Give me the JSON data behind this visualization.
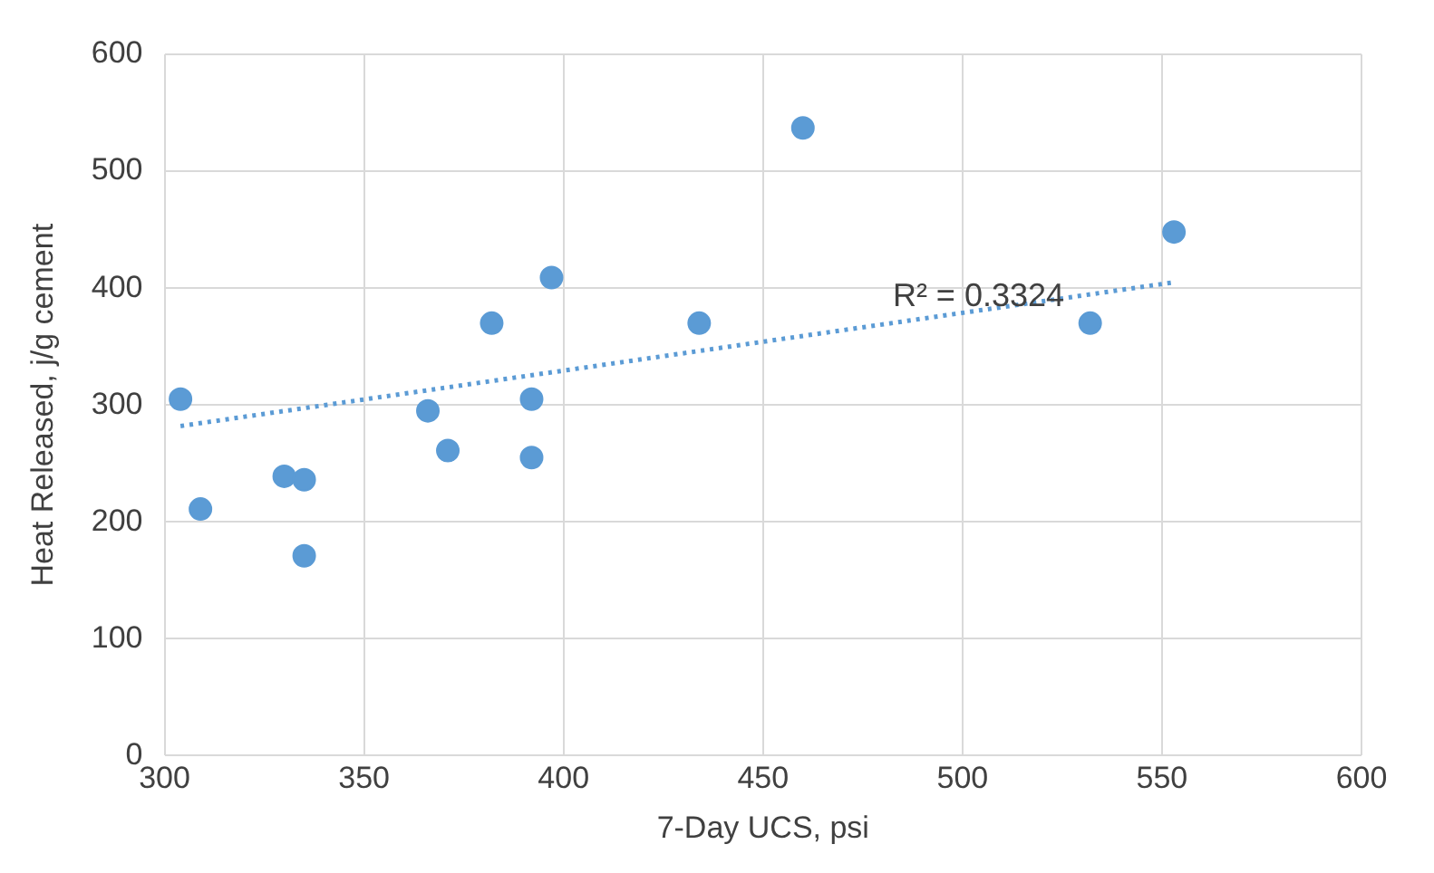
{
  "chart_data": {
    "type": "scatter",
    "xlabel": "7-Day UCS, psi",
    "ylabel": "Heat Released, j/g cement",
    "series": [
      {
        "color": "#5b9bd5",
        "x": [
          304,
          309,
          330,
          335,
          335,
          366,
          371,
          382,
          392,
          392,
          397,
          434,
          460,
          532,
          553
        ],
        "values": [
          305,
          211,
          239,
          236,
          171,
          295,
          261,
          370,
          305,
          255,
          409,
          370,
          537,
          370,
          448
        ]
      },
      {
        "type": "line",
        "color": "#5b9bd5",
        "line_style": "dotted",
        "marker": "none",
        "x": [
          304,
          553
        ],
        "values": [
          282,
          405
        ]
      }
    ],
    "annotations": [
      "R² = 0.3324"
    ],
    "xlim": [
      300,
      600
    ],
    "xticks": [
      300,
      350,
      400,
      450,
      500,
      550,
      600
    ],
    "ylim": [
      0,
      600
    ],
    "yticks": [
      0,
      100,
      200,
      300,
      400,
      500,
      600
    ],
    "grid": true,
    "legend": false,
    "marker": "circle"
  }
}
